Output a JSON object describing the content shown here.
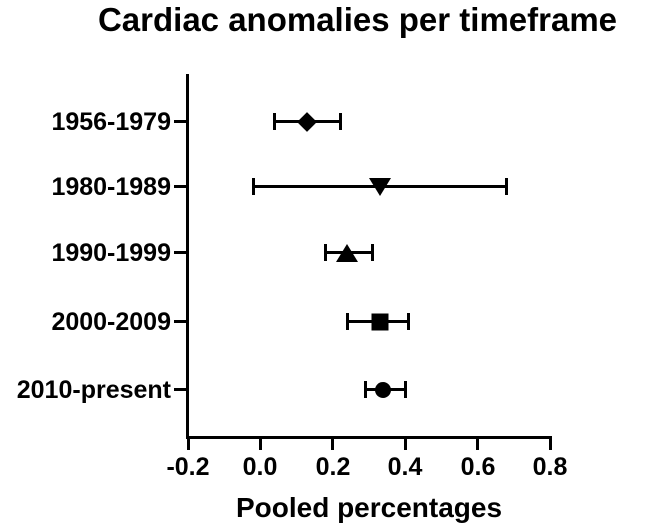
{
  "chart_data": {
    "type": "scatter",
    "subtype": "forest-plot-horizontal-error-bars",
    "title": "Cardiac anomalies per timeframe",
    "xlabel": "Pooled percentages",
    "ylabel": "",
    "xlim": [
      -0.2,
      0.8
    ],
    "x_ticks": [
      -0.2,
      0.0,
      0.2,
      0.4,
      0.6,
      0.8
    ],
    "x_tick_labels": [
      "-0.2",
      "0.0",
      "0.2",
      "0.4",
      "0.6",
      "0.8"
    ],
    "grid": false,
    "legend": false,
    "categories": [
      "1956-1979",
      "1980-1989",
      "1990-1999",
      "2000-2009",
      "2010-present"
    ],
    "points": [
      {
        "category": "1956-1979",
        "marker": "diamond",
        "value": 0.13,
        "ci_low": 0.04,
        "ci_high": 0.22
      },
      {
        "category": "1980-1989",
        "marker": "triangle-down",
        "value": 0.33,
        "ci_low": -0.02,
        "ci_high": 0.68
      },
      {
        "category": "1990-1999",
        "marker": "triangle-up",
        "value": 0.24,
        "ci_low": 0.18,
        "ci_high": 0.31
      },
      {
        "category": "2000-2009",
        "marker": "square",
        "value": 0.33,
        "ci_low": 0.24,
        "ci_high": 0.41
      },
      {
        "category": "2010-present",
        "marker": "circle",
        "value": 0.34,
        "ci_low": 0.29,
        "ci_high": 0.4
      }
    ],
    "colors": {
      "foreground": "#000000",
      "background": "#ffffff"
    }
  }
}
